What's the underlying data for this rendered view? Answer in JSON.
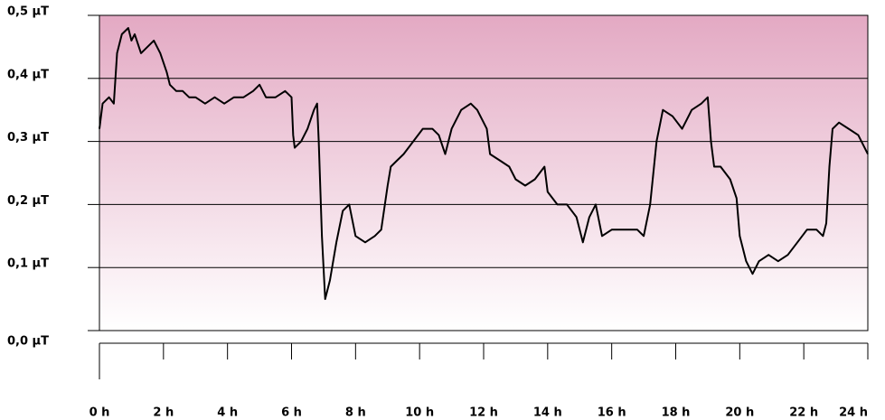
{
  "chart_data": {
    "type": "line",
    "x": [
      0,
      0.1,
      0.3,
      0.45,
      0.5,
      0.55,
      0.7,
      0.9,
      1.0,
      1.1,
      1.3,
      1.5,
      1.7,
      1.9,
      2.1,
      2.2,
      2.4,
      2.6,
      2.8,
      3.0,
      3.3,
      3.6,
      3.9,
      4.2,
      4.5,
      4.8,
      5.0,
      5.2,
      5.5,
      5.8,
      6.0,
      6.05,
      6.1,
      6.3,
      6.5,
      6.7,
      6.8,
      6.85,
      6.95,
      7.05,
      7.2,
      7.4,
      7.6,
      7.8,
      8.0,
      8.3,
      8.6,
      8.8,
      9.0,
      9.1,
      9.3,
      9.5,
      9.8,
      10.1,
      10.4,
      10.6,
      10.8,
      11.0,
      11.3,
      11.6,
      11.8,
      12.1,
      12.2,
      12.5,
      12.8,
      13.0,
      13.3,
      13.6,
      13.9,
      14.0,
      14.3,
      14.6,
      14.9,
      15.1,
      15.3,
      15.5,
      15.7,
      16.0,
      16.4,
      16.8,
      17.0,
      17.2,
      17.4,
      17.6,
      17.9,
      18.2,
      18.5,
      18.8,
      19.0,
      19.1,
      19.2,
      19.4,
      19.7,
      19.9,
      20.0,
      20.2,
      20.4,
      20.6,
      20.9,
      21.2,
      21.5,
      21.8,
      22.1,
      22.4,
      22.6,
      22.7,
      22.8,
      22.9,
      23.1,
      23.4,
      23.7,
      24.0
    ],
    "series": [
      {
        "color": "#000000",
        "values": [
          0.32,
          0.36,
          0.37,
          0.36,
          0.4,
          0.44,
          0.47,
          0.48,
          0.46,
          0.47,
          0.44,
          0.45,
          0.46,
          0.44,
          0.41,
          0.39,
          0.38,
          0.38,
          0.37,
          0.37,
          0.36,
          0.37,
          0.36,
          0.37,
          0.37,
          0.38,
          0.39,
          0.37,
          0.37,
          0.38,
          0.37,
          0.31,
          0.29,
          0.3,
          0.32,
          0.35,
          0.36,
          0.3,
          0.15,
          0.05,
          0.08,
          0.14,
          0.19,
          0.2,
          0.15,
          0.14,
          0.15,
          0.16,
          0.23,
          0.26,
          0.27,
          0.28,
          0.3,
          0.32,
          0.32,
          0.31,
          0.28,
          0.32,
          0.35,
          0.36,
          0.35,
          0.32,
          0.28,
          0.27,
          0.26,
          0.24,
          0.23,
          0.24,
          0.26,
          0.22,
          0.2,
          0.2,
          0.18,
          0.14,
          0.18,
          0.2,
          0.15,
          0.16,
          0.16,
          0.16,
          0.15,
          0.2,
          0.3,
          0.35,
          0.34,
          0.32,
          0.35,
          0.36,
          0.37,
          0.3,
          0.26,
          0.26,
          0.24,
          0.21,
          0.15,
          0.11,
          0.09,
          0.11,
          0.12,
          0.11,
          0.12,
          0.14,
          0.16,
          0.16,
          0.15,
          0.17,
          0.26,
          0.32,
          0.33,
          0.32,
          0.31,
          0.28
        ]
      }
    ],
    "xlim": [
      0,
      24
    ],
    "xticks": [
      {
        "value": 0,
        "label": "0 h"
      },
      {
        "value": 2,
        "label": "2 h"
      },
      {
        "value": 4,
        "label": "4 h"
      },
      {
        "value": 6,
        "label": "6 h"
      },
      {
        "value": 8,
        "label": "8 h"
      },
      {
        "value": 10,
        "label": "10 h"
      },
      {
        "value": 12,
        "label": "12 h"
      },
      {
        "value": 14,
        "label": "14 h"
      },
      {
        "value": 16,
        "label": "16 h"
      },
      {
        "value": 18,
        "label": "18 h"
      },
      {
        "value": 20,
        "label": "20 h"
      },
      {
        "value": 22,
        "label": "22 h"
      },
      {
        "value": 24,
        "label": "24 h"
      }
    ],
    "ylim": [
      0,
      0.5
    ],
    "yticks": [
      {
        "value": 0,
        "label": "0,0 µT"
      },
      {
        "value": 0.1,
        "label": "0,1 µT"
      },
      {
        "value": 0.2,
        "label": "0,2 µT"
      },
      {
        "value": 0.3,
        "label": "0,3 µT"
      },
      {
        "value": 0.4,
        "label": "0,4 µT"
      },
      {
        "value": 0.5,
        "label": "0,5 µT"
      }
    ],
    "grid": true
  }
}
